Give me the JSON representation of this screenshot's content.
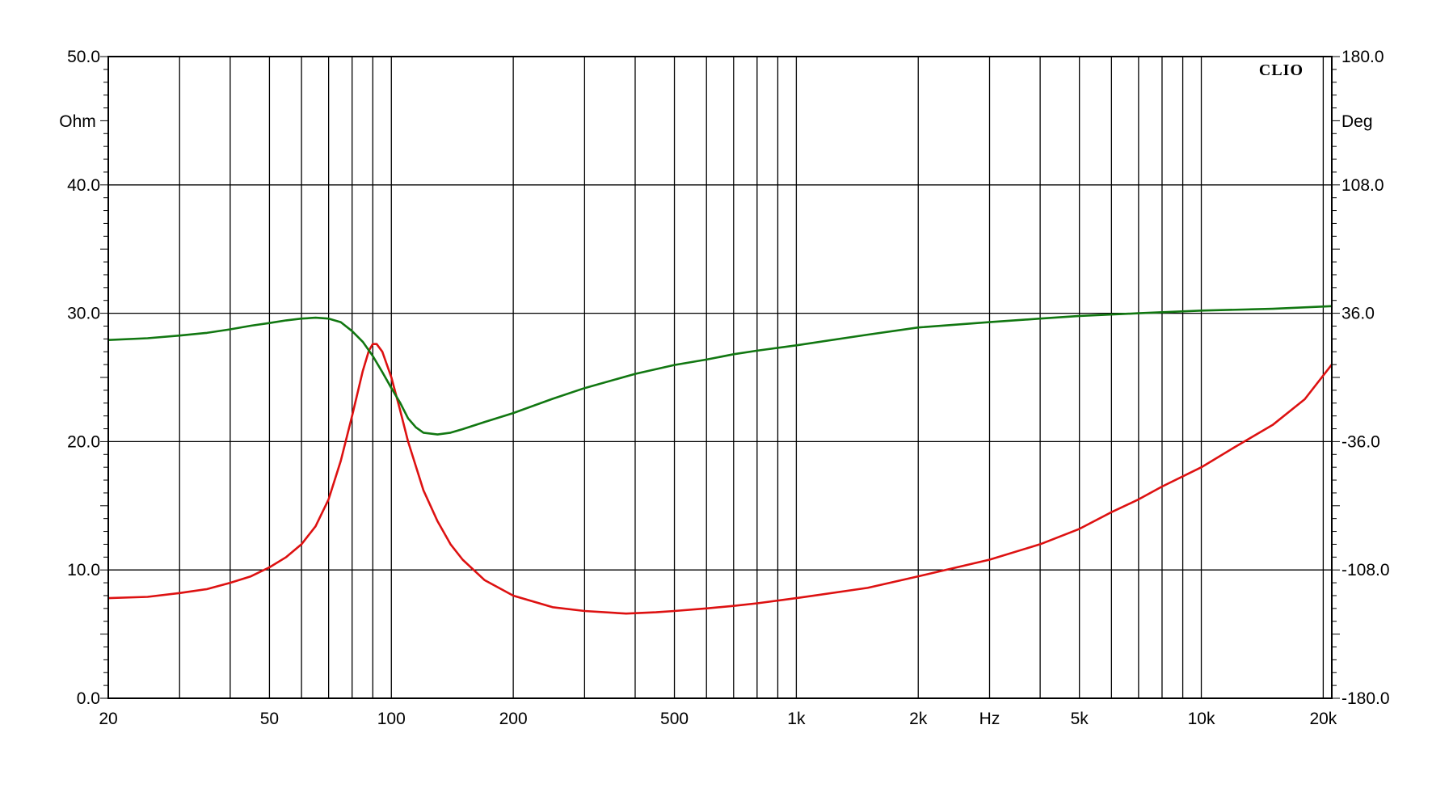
{
  "chart_data": {
    "type": "line",
    "brand": "CLIO",
    "x_scale": "log",
    "xlim": [
      20,
      21000
    ],
    "y_left": {
      "unit": "Ohm",
      "lim": [
        0,
        50
      ]
    },
    "y_right": {
      "unit": "Deg",
      "lim": [
        -180,
        180
      ]
    },
    "x_unit": "Hz",
    "x_gridlines": [
      20,
      30,
      40,
      50,
      60,
      70,
      80,
      90,
      100,
      200,
      300,
      400,
      500,
      600,
      700,
      800,
      900,
      1000,
      2000,
      3000,
      4000,
      5000,
      6000,
      7000,
      8000,
      9000,
      10000,
      20000
    ],
    "x_tick_labels": [
      {
        "value": 20,
        "label": "20"
      },
      {
        "value": 50,
        "label": "50"
      },
      {
        "value": 100,
        "label": "100"
      },
      {
        "value": 200,
        "label": "200"
      },
      {
        "value": 500,
        "label": "500"
      },
      {
        "value": 1000,
        "label": "1k"
      },
      {
        "value": 2000,
        "label": "2k"
      },
      {
        "value": 3000,
        "label": "Hz"
      },
      {
        "value": 5000,
        "label": "5k"
      },
      {
        "value": 10000,
        "label": "10k"
      },
      {
        "value": 20000,
        "label": "20k"
      }
    ],
    "y_left_ticks": [
      {
        "value": 0,
        "label": "0.0"
      },
      {
        "value": 10,
        "label": "10.0"
      },
      {
        "value": 20,
        "label": "20.0"
      },
      {
        "value": 30,
        "label": "30.0"
      },
      {
        "value": 40,
        "label": "40.0"
      },
      {
        "value": 50,
        "label": "50.0"
      }
    ],
    "y_right_ticks": [
      {
        "value": -180,
        "label": "-180.0"
      },
      {
        "value": -108,
        "label": "-108.0"
      },
      {
        "value": -36,
        "label": "-36.0"
      },
      {
        "value": 36,
        "label": "36.0"
      },
      {
        "value": 108,
        "label": "108.0"
      },
      {
        "value": 180,
        "label": "180.0"
      }
    ],
    "series": [
      {
        "axis": "left",
        "color": "#dd1111",
        "points": [
          [
            20,
            7.8
          ],
          [
            25,
            7.9
          ],
          [
            30,
            8.2
          ],
          [
            35,
            8.5
          ],
          [
            40,
            9.0
          ],
          [
            45,
            9.5
          ],
          [
            50,
            10.2
          ],
          [
            55,
            11.0
          ],
          [
            60,
            12.0
          ],
          [
            65,
            13.4
          ],
          [
            70,
            15.5
          ],
          [
            75,
            18.5
          ],
          [
            80,
            22.0
          ],
          [
            85,
            25.5
          ],
          [
            88,
            27.1
          ],
          [
            90,
            27.6
          ],
          [
            92,
            27.6
          ],
          [
            95,
            27.0
          ],
          [
            100,
            25.0
          ],
          [
            105,
            22.5
          ],
          [
            110,
            20.0
          ],
          [
            120,
            16.2
          ],
          [
            130,
            13.8
          ],
          [
            140,
            12.0
          ],
          [
            150,
            10.8
          ],
          [
            170,
            9.2
          ],
          [
            200,
            8.0
          ],
          [
            250,
            7.1
          ],
          [
            300,
            6.8
          ],
          [
            380,
            6.6
          ],
          [
            450,
            6.7
          ],
          [
            500,
            6.8
          ],
          [
            600,
            7.0
          ],
          [
            700,
            7.2
          ],
          [
            800,
            7.4
          ],
          [
            1000,
            7.8
          ],
          [
            1500,
            8.6
          ],
          [
            2000,
            9.5
          ],
          [
            3000,
            10.8
          ],
          [
            4000,
            12.0
          ],
          [
            5000,
            13.2
          ],
          [
            6000,
            14.5
          ],
          [
            7000,
            15.5
          ],
          [
            8000,
            16.5
          ],
          [
            10000,
            18.0
          ],
          [
            12000,
            19.5
          ],
          [
            15000,
            21.3
          ],
          [
            18000,
            23.3
          ],
          [
            21000,
            26.0
          ]
        ]
      },
      {
        "axis": "right",
        "color": "#117711",
        "points": [
          [
            20,
            21
          ],
          [
            25,
            22
          ],
          [
            30,
            23.5
          ],
          [
            35,
            25
          ],
          [
            40,
            27
          ],
          [
            45,
            29
          ],
          [
            50,
            30.5
          ],
          [
            55,
            32
          ],
          [
            60,
            33
          ],
          [
            65,
            33.5
          ],
          [
            70,
            33
          ],
          [
            75,
            31
          ],
          [
            80,
            26
          ],
          [
            85,
            20
          ],
          [
            90,
            12
          ],
          [
            95,
            3
          ],
          [
            100,
            -6
          ],
          [
            105,
            -14
          ],
          [
            110,
            -23
          ],
          [
            115,
            -28
          ],
          [
            120,
            -31
          ],
          [
            130,
            -32
          ],
          [
            140,
            -31
          ],
          [
            150,
            -29
          ],
          [
            170,
            -25
          ],
          [
            200,
            -20
          ],
          [
            250,
            -12
          ],
          [
            300,
            -6
          ],
          [
            400,
            2
          ],
          [
            500,
            7
          ],
          [
            600,
            10
          ],
          [
            700,
            13
          ],
          [
            800,
            15
          ],
          [
            1000,
            18
          ],
          [
            1500,
            24
          ],
          [
            2000,
            28
          ],
          [
            3000,
            31
          ],
          [
            4000,
            33
          ],
          [
            5000,
            34.5
          ],
          [
            7000,
            36
          ],
          [
            10000,
            37.5
          ],
          [
            15000,
            38.5
          ],
          [
            21000,
            40
          ]
        ]
      }
    ]
  }
}
